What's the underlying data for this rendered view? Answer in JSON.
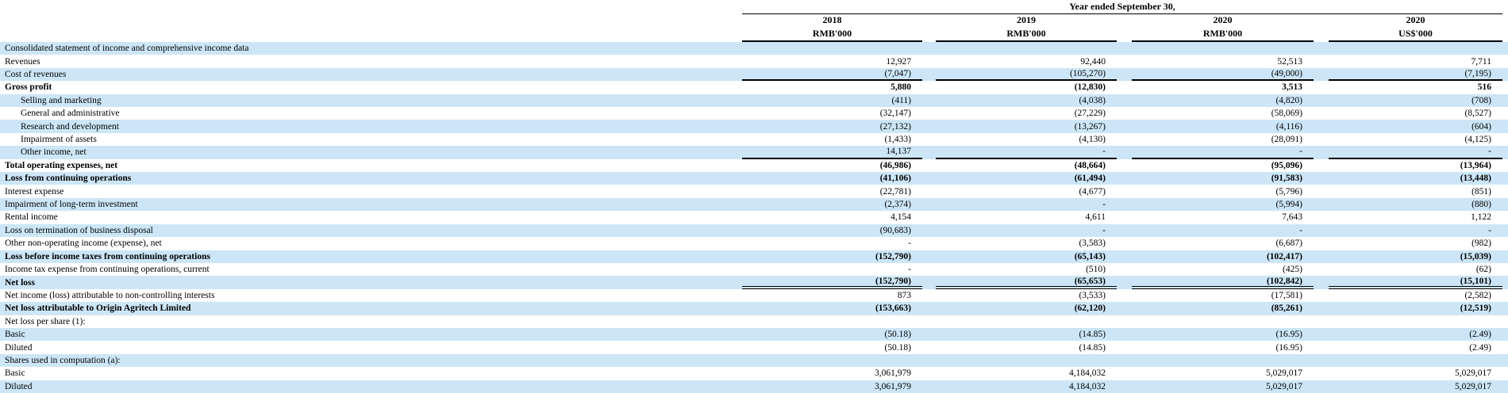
{
  "header": {
    "span_title": "Year ended September 30,",
    "columns": [
      {
        "year": "2018",
        "unit": "RMB'000"
      },
      {
        "year": "2019",
        "unit": "RMB'000"
      },
      {
        "year": "2020",
        "unit": "RMB'000"
      },
      {
        "year": "2020",
        "unit": "US$'000"
      }
    ]
  },
  "colors": {
    "row_stripe": "#cce6f7",
    "rule": "#000000"
  },
  "rows": [
    {
      "label": "Consolidated statement of income and comprehensive income data",
      "indent": false,
      "bold": false,
      "rule": null,
      "values": [
        "",
        "",
        "",
        ""
      ]
    },
    {
      "label": "Revenues",
      "indent": false,
      "bold": false,
      "rule": null,
      "values": [
        "12,927",
        "92,440",
        "52,513",
        "7,711"
      ]
    },
    {
      "label": "Cost of revenues",
      "indent": false,
      "bold": false,
      "rule": "single",
      "values": [
        "(7,047)",
        "(105,270)",
        "(49,000)",
        "(7,195)"
      ]
    },
    {
      "label": "Gross profit",
      "indent": false,
      "bold": true,
      "rule": null,
      "values": [
        "5,880",
        "(12,830)",
        "3,513",
        "516"
      ]
    },
    {
      "label": "Selling and marketing",
      "indent": true,
      "bold": false,
      "rule": null,
      "values": [
        "(411)",
        "(4,038)",
        "(4,820)",
        "(708)"
      ]
    },
    {
      "label": "General and administrative",
      "indent": true,
      "bold": false,
      "rule": null,
      "values": [
        "(32,147)",
        "(27,229)",
        "(58,069)",
        "(8,527)"
      ]
    },
    {
      "label": "Research and development",
      "indent": true,
      "bold": false,
      "rule": null,
      "values": [
        "(27,132)",
        "(13,267)",
        "(4,116)",
        "(604)"
      ]
    },
    {
      "label": "Impairment of assets",
      "indent": true,
      "bold": false,
      "rule": null,
      "values": [
        "(1,433)",
        "(4,130)",
        "(28,091)",
        "(4,125)"
      ]
    },
    {
      "label": "Other income, net",
      "indent": true,
      "bold": false,
      "rule": "single",
      "values": [
        "14,137",
        "-",
        "-",
        "-"
      ]
    },
    {
      "label": "Total operating expenses, net",
      "indent": false,
      "bold": true,
      "rule": null,
      "values": [
        "(46,986)",
        "(48,664)",
        "(95,096)",
        "(13,964)"
      ]
    },
    {
      "label": "Loss from continuing operations",
      "indent": false,
      "bold": true,
      "rule": null,
      "values": [
        "(41,106)",
        "(61,494)",
        "(91,583)",
        "(13,448)"
      ]
    },
    {
      "label": "Interest expense",
      "indent": false,
      "bold": false,
      "rule": null,
      "values": [
        "(22,781)",
        "(4,677)",
        "(5,796)",
        "(851)"
      ]
    },
    {
      "label": "Impairment of long-term investment",
      "indent": false,
      "bold": false,
      "rule": null,
      "values": [
        "(2,374)",
        "-",
        "(5,994)",
        "(880)"
      ]
    },
    {
      "label": "Rental income",
      "indent": false,
      "bold": false,
      "rule": null,
      "values": [
        "4,154",
        "4,611",
        "7,643",
        "1,122"
      ]
    },
    {
      "label": "Loss on termination of business disposal",
      "indent": false,
      "bold": false,
      "rule": null,
      "values": [
        "(90,683)",
        "-",
        "-",
        "-"
      ]
    },
    {
      "label": "Other non-operating income (expense), net",
      "indent": false,
      "bold": false,
      "rule": null,
      "values": [
        "-",
        "(3,583)",
        "(6,687)",
        "(982)"
      ]
    },
    {
      "label": "Loss before income taxes from continuing operations",
      "indent": false,
      "bold": true,
      "rule": null,
      "values": [
        "(152,790)",
        "(65,143)",
        "(102,417)",
        "(15,039)"
      ]
    },
    {
      "label": "Income tax expense from continuing operations, current",
      "indent": false,
      "bold": false,
      "rule": null,
      "values": [
        "-",
        "(510)",
        "(425)",
        "(62)"
      ]
    },
    {
      "label": "Net loss",
      "indent": false,
      "bold": true,
      "rule": "double",
      "values": [
        "(152,790)",
        "(65,653)",
        "(102,842)",
        "(15,101)"
      ]
    },
    {
      "label": "Net income (loss) attributable to non-controlling interests",
      "indent": false,
      "bold": false,
      "rule": null,
      "values": [
        "873",
        "(3,533)",
        "(17,581)",
        "(2,582)"
      ]
    },
    {
      "label": "Net loss attributable to Origin Agritech Limited",
      "indent": false,
      "bold": true,
      "rule": null,
      "values": [
        "(153,663)",
        "(62,120)",
        "(85,261)",
        "(12,519)"
      ]
    },
    {
      "label": "Net loss per share (1):",
      "indent": false,
      "bold": false,
      "rule": null,
      "values": [
        "",
        "",
        "",
        ""
      ]
    },
    {
      "label": "Basic",
      "indent": false,
      "bold": false,
      "rule": null,
      "values": [
        "(50.18)",
        "(14.85)",
        "(16.95)",
        "(2.49)"
      ]
    },
    {
      "label": "Diluted",
      "indent": false,
      "bold": false,
      "rule": null,
      "values": [
        "(50.18)",
        "(14.85)",
        "(16.95)",
        "(2.49)"
      ]
    },
    {
      "label": "Shares used in computation (a):",
      "indent": false,
      "bold": false,
      "rule": null,
      "values": [
        "",
        "",
        "",
        ""
      ]
    },
    {
      "label": "Basic",
      "indent": false,
      "bold": false,
      "rule": null,
      "values": [
        "3,061,979",
        "4,184,032",
        "5,029,017",
        "5,029,017"
      ]
    },
    {
      "label": "Diluted",
      "indent": false,
      "bold": false,
      "rule": null,
      "values": [
        "3,061,979",
        "4,184,032",
        "5,029,017",
        "5,029,017"
      ]
    }
  ]
}
